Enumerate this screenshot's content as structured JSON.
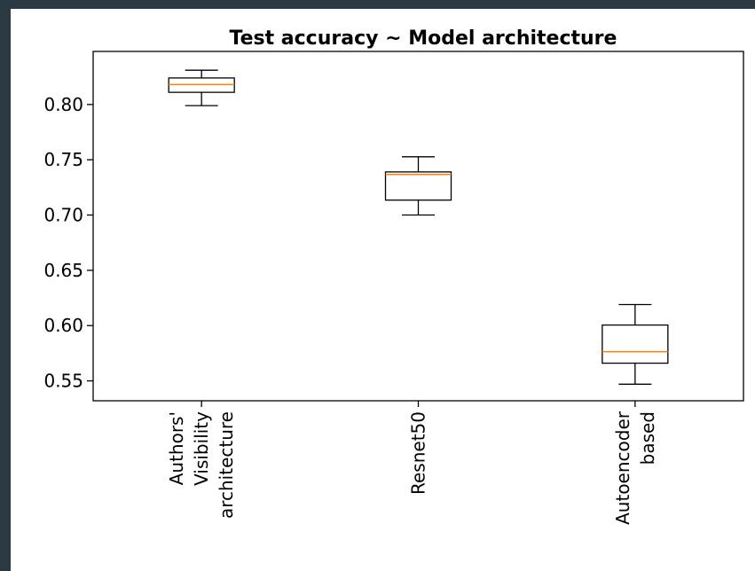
{
  "chart_data": {
    "type": "box",
    "title": "Test accuracy ~ Model architecture",
    "categories": [
      [
        "Authors'",
        "Visibility",
        "architecture"
      ],
      [
        "Resnet50"
      ],
      [
        "Autoencoder",
        "based"
      ]
    ],
    "whislo": [
      0.799,
      0.7,
      0.547
    ],
    "q1": [
      0.811,
      0.7135,
      0.566
    ],
    "med": [
      0.818,
      0.7367,
      0.5764
    ],
    "q3": [
      0.824,
      0.739,
      0.6005
    ],
    "whishi": [
      0.831,
      0.7527,
      0.619
    ],
    "median_color": "#ff7f0e",
    "box_color": "#000000",
    "ylim": [
      0.532,
      0.848
    ],
    "yticks": [
      {
        "value": 0.55,
        "label": "0.55"
      },
      {
        "value": 0.6,
        "label": "0.60"
      },
      0.65,
      {
        "value": 0.7,
        "label": "0.70"
      },
      0.75,
      {
        "value": 0.8,
        "label": "0.80"
      }
    ]
  }
}
